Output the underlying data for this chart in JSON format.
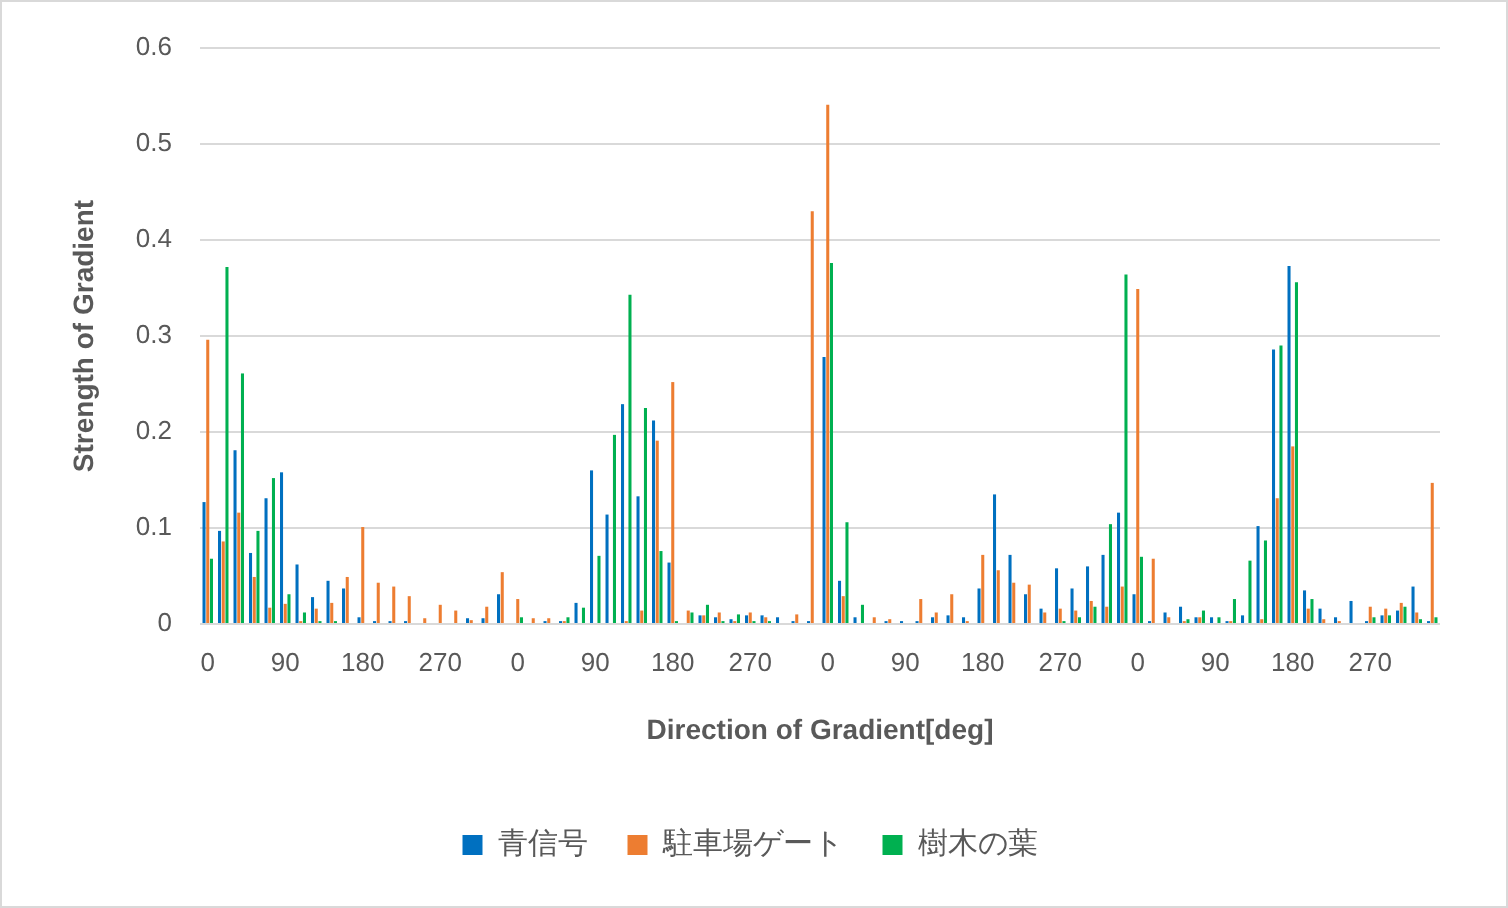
{
  "chart_data": {
    "type": "bar",
    "xlabel": "Direction of Gradient[deg]",
    "ylabel": "Strength of Gradient",
    "categories": [
      "0",
      null,
      null,
      null,
      null,
      "90",
      null,
      null,
      null,
      null,
      "180",
      null,
      null,
      null,
      null,
      "270",
      null,
      null,
      null,
      null,
      "0",
      null,
      null,
      null,
      null,
      "90",
      null,
      null,
      null,
      null,
      "180",
      null,
      null,
      null,
      null,
      "270",
      null,
      null,
      null,
      null,
      "0",
      null,
      null,
      null,
      null,
      "90",
      null,
      null,
      null,
      null,
      "180",
      null,
      null,
      null,
      null,
      "270",
      null,
      null,
      null,
      null,
      "0",
      null,
      null,
      null,
      null,
      "90",
      null,
      null,
      null,
      null,
      "180",
      null,
      null,
      null,
      null,
      "270",
      null,
      null,
      null,
      null
    ],
    "series": [
      {
        "name": "青信号",
        "color": "#0070c0",
        "values": [
          0.127,
          0.097,
          0.181,
          0.074,
          0.131,
          0.158,
          0.062,
          0.028,
          0.045,
          0.037,
          0.007,
          0.003,
          0.003,
          0.003,
          0,
          0,
          0,
          0.006,
          0.006,
          0.031,
          0,
          0,
          0.003,
          0.003,
          0.022,
          0.16,
          0.114,
          0.229,
          0.133,
          0.212,
          0.064,
          0,
          0.009,
          0.007,
          0.005,
          0.009,
          0.009,
          0.007,
          0.003,
          0.003,
          0.278,
          0.045,
          0.007,
          0,
          0.003,
          0.003,
          0.003,
          0.007,
          0.009,
          0.007,
          0.037,
          0.135,
          0.072,
          0.031,
          0.016,
          0.058,
          0.037,
          0.06,
          0.072,
          0.116,
          0.031,
          0.003,
          0.012,
          0.018,
          0.007,
          0.007,
          0.003,
          0.009,
          0.102,
          0.286,
          0.373,
          0.035,
          0.016,
          0.007,
          0.024,
          0.003,
          0.009,
          0.014,
          0.039,
          0.003
        ]
      },
      {
        "name": "駐車場ゲート",
        "color": "#ed7d31",
        "values": [
          0.296,
          0.086,
          0.116,
          0.049,
          0.017,
          0.021,
          0.003,
          0.016,
          0.022,
          0.049,
          0.101,
          0.043,
          0.039,
          0.029,
          0.006,
          0.02,
          0.014,
          0.004,
          0.018,
          0.054,
          0.026,
          0.006,
          0.006,
          0.003,
          0,
          0,
          0,
          0.003,
          0.014,
          0.191,
          0.252,
          0.014,
          0.009,
          0.012,
          0.003,
          0.012,
          0.007,
          0,
          0.01,
          0.43,
          0.541,
          0.029,
          0,
          0.007,
          0.005,
          0,
          0.026,
          0.012,
          0.031,
          0.003,
          0.072,
          0.056,
          0.043,
          0.041,
          0.012,
          0.016,
          0.014,
          0.024,
          0.018,
          0.039,
          0.349,
          0.068,
          0.007,
          0.003,
          0.007,
          0,
          0.003,
          0,
          0.005,
          0.131,
          0.185,
          0.016,
          0.005,
          0.003,
          0,
          0.018,
          0.016,
          0.022,
          0.012,
          0.147
        ]
      },
      {
        "name": "樹木の葉",
        "color": "#00b050",
        "values": [
          0.068,
          0.372,
          0.261,
          0.097,
          0.152,
          0.031,
          0.012,
          0.003,
          0.003,
          0,
          0,
          0,
          0,
          0,
          0,
          0,
          0,
          0,
          0,
          0,
          0.007,
          0,
          0,
          0.007,
          0.017,
          0.071,
          0.197,
          0.343,
          0.225,
          0.076,
          0.003,
          0.012,
          0.02,
          0.003,
          0.01,
          0.003,
          0.003,
          0,
          0,
          0,
          0.376,
          0.106,
          0.02,
          0,
          0,
          0,
          0,
          0,
          0,
          0,
          0,
          0,
          0,
          0,
          0,
          0.003,
          0.007,
          0.018,
          0.104,
          0.364,
          0.07,
          0,
          0,
          0.005,
          0.014,
          0.007,
          0.026,
          0.066,
          0.087,
          0.29,
          0.356,
          0.026,
          0,
          0,
          0,
          0.007,
          0.009,
          0.018,
          0.005,
          0.007
        ]
      }
    ],
    "ylim": [
      0,
      0.6
    ],
    "yticks": [
      0,
      0.1,
      0.2,
      0.3,
      0.4,
      0.5,
      0.6
    ],
    "grid": "y",
    "legend": "bottom"
  }
}
